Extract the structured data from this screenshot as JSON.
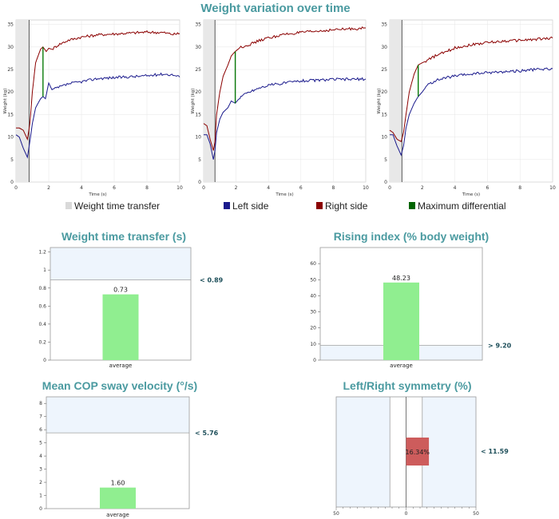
{
  "page": {
    "main_title": "Weight variation over time"
  },
  "legend": [
    {
      "label": "Weight time transfer",
      "color": "#d9d9d9"
    },
    {
      "label": "Left side",
      "color": "#1a1a8c"
    },
    {
      "label": "Right side",
      "color": "#8b0000"
    },
    {
      "label": "Maximum differential",
      "color": "#006400"
    }
  ],
  "chart_data": [
    {
      "type": "line",
      "title": "",
      "xlabel": "Time (s)",
      "ylabel": "Weight (kg)",
      "xlim": [
        0,
        10
      ],
      "ylim": [
        0,
        36
      ],
      "xticks": [
        0,
        2,
        4,
        6,
        8,
        10
      ],
      "yticks": [
        0,
        5,
        10,
        15,
        20,
        25,
        30,
        35
      ],
      "transfer_window": [
        0,
        0.8
      ],
      "max_differential": {
        "x": 1.65,
        "y_low": 19.0,
        "y_high": 30.0
      },
      "series": [
        {
          "name": "Left side",
          "color": "#1a1a8c",
          "x": [
            0,
            0.2,
            0.45,
            0.7,
            0.85,
            1.0,
            1.2,
            1.5,
            1.65,
            1.8,
            2.0,
            2.2,
            2.6,
            3.2,
            4,
            5,
            6,
            7,
            8,
            9,
            9.6,
            10
          ],
          "y": [
            10.5,
            10,
            7.5,
            5.5,
            9,
            13,
            16.5,
            18.5,
            19,
            18.5,
            22,
            20.5,
            21,
            21.8,
            22.3,
            23,
            23.2,
            23.4,
            23.6,
            24,
            23.8,
            23.3
          ]
        },
        {
          "name": "Right side",
          "color": "#8b0000",
          "x": [
            0,
            0.2,
            0.45,
            0.7,
            0.85,
            1.0,
            1.2,
            1.5,
            1.65,
            1.85,
            2.0,
            2.2,
            2.6,
            3.2,
            4,
            5,
            6,
            7,
            8,
            9,
            9.6,
            10
          ],
          "y": [
            12,
            12,
            11.5,
            9.5,
            13,
            20,
            26.5,
            29.5,
            30,
            29,
            29.7,
            29.5,
            30.5,
            31.5,
            32.2,
            32.7,
            32.9,
            33.1,
            33.3,
            33.2,
            32.8,
            33
          ]
        }
      ]
    },
    {
      "type": "line",
      "title": "",
      "xlabel": "Time (s)",
      "ylabel": "Weight (kg)",
      "xlim": [
        0,
        10
      ],
      "ylim": [
        0,
        36
      ],
      "xticks": [
        0,
        2,
        4,
        6,
        8,
        10
      ],
      "yticks": [
        0,
        5,
        10,
        15,
        20,
        25,
        30,
        35
      ],
      "transfer_window": [
        0,
        0.7
      ],
      "max_differential": {
        "x": 1.95,
        "y_low": 17.5,
        "y_high": 29.0
      },
      "series": [
        {
          "name": "Left side",
          "color": "#1a1a8c",
          "x": [
            0,
            0.2,
            0.4,
            0.6,
            0.7,
            0.8,
            1.0,
            1.2,
            1.5,
            1.7,
            1.95,
            2.3,
            2.8,
            3.5,
            4,
            5,
            6,
            7,
            8,
            9,
            10
          ],
          "y": [
            10.5,
            10.5,
            8.5,
            5,
            7,
            11,
            14,
            15.5,
            16.5,
            18,
            17.5,
            19,
            20,
            21,
            21.5,
            22,
            22.5,
            22.6,
            22.8,
            22.8,
            22.9
          ]
        },
        {
          "name": "Right side",
          "color": "#8b0000",
          "x": [
            0,
            0.2,
            0.4,
            0.6,
            0.7,
            0.8,
            1.0,
            1.2,
            1.5,
            1.7,
            1.95,
            2.3,
            2.8,
            3.5,
            4,
            5,
            6,
            7,
            8,
            9,
            10
          ],
          "y": [
            13,
            12.5,
            9.5,
            7,
            9,
            15,
            20,
            23.5,
            26,
            28,
            29,
            30,
            30.5,
            31.5,
            32,
            32.8,
            33.2,
            33.5,
            33.8,
            34,
            34.2
          ]
        }
      ]
    },
    {
      "type": "line",
      "title": "",
      "xlabel": "Time (s)",
      "ylabel": "Weight (kg)",
      "xlim": [
        0,
        10
      ],
      "ylim": [
        0,
        36
      ],
      "xticks": [
        0,
        2,
        4,
        6,
        8,
        10
      ],
      "yticks": [
        0,
        5,
        10,
        15,
        20,
        25,
        30,
        35
      ],
      "transfer_window": [
        0,
        0.75
      ],
      "max_differential": {
        "x": 1.75,
        "y_low": 19.0,
        "y_high": 26.0
      },
      "series": [
        {
          "name": "Left side",
          "color": "#1a1a8c",
          "x": [
            0,
            0.2,
            0.45,
            0.7,
            0.85,
            1.0,
            1.2,
            1.5,
            1.75,
            2.0,
            2.3,
            2.8,
            3.5,
            4,
            5,
            6,
            7,
            8,
            9,
            10
          ],
          "y": [
            10.5,
            10.5,
            8,
            6,
            8,
            12,
            15,
            17.5,
            19,
            20,
            21.5,
            22.5,
            23.2,
            23.5,
            24,
            24.3,
            24.5,
            24.7,
            25,
            25.2
          ]
        },
        {
          "name": "Right side",
          "color": "#8b0000",
          "x": [
            0,
            0.2,
            0.45,
            0.7,
            0.85,
            1.0,
            1.2,
            1.5,
            1.75,
            2.0,
            2.3,
            2.8,
            3.5,
            4,
            5,
            6,
            7,
            8,
            9,
            10
          ],
          "y": [
            11.5,
            11,
            9.5,
            9,
            11,
            15,
            20,
            24,
            26,
            26.5,
            27,
            28,
            29,
            29.8,
            30.5,
            31,
            31.3,
            31.5,
            31.7,
            32
          ]
        }
      ]
    },
    {
      "type": "bar",
      "title": "Weight time transfer (s)",
      "categories": [
        "average"
      ],
      "values": [
        0.73
      ],
      "value_labels": [
        "0.73"
      ],
      "ylim": [
        0,
        1.25
      ],
      "yticks": [
        0,
        0.2,
        0.4,
        0.6,
        0.8,
        1,
        1.2
      ],
      "ytick_labels": [
        "0",
        "0.2",
        "0.4",
        "0.6",
        "0.8",
        "1",
        "1.2"
      ],
      "threshold": {
        "value": 0.89,
        "label": "< 0.89",
        "zone": "above"
      },
      "bar_color": "#90ee90"
    },
    {
      "type": "bar",
      "title": "Rising index (% body weight)",
      "categories": [
        "average"
      ],
      "values": [
        48.23
      ],
      "value_labels": [
        "48.23"
      ],
      "ylim": [
        0,
        70
      ],
      "yticks": [
        0,
        10,
        20,
        30,
        40,
        50,
        60
      ],
      "ytick_labels": [
        "0",
        "10",
        "20",
        "30",
        "40",
        "50",
        "60"
      ],
      "threshold": {
        "value": 9.2,
        "label": "> 9.20",
        "zone": "below"
      },
      "bar_color": "#90ee90"
    },
    {
      "type": "bar",
      "title": "Mean COP sway velocity (°/s)",
      "categories": [
        "average"
      ],
      "values": [
        1.6
      ],
      "value_labels": [
        "1.60"
      ],
      "ylim": [
        0,
        8.5
      ],
      "yticks": [
        0,
        1,
        2,
        3,
        4,
        5,
        6,
        7,
        8
      ],
      "ytick_labels": [
        "0",
        "1",
        "2",
        "3",
        "4",
        "5",
        "6",
        "7",
        "8"
      ],
      "threshold": {
        "value": 5.76,
        "label": "< 5.76",
        "zone": "above"
      },
      "bar_color": "#90ee90"
    },
    {
      "type": "bar",
      "title": "Left/Right symmetry (%)",
      "orientation": "horizontal",
      "value": 16.34,
      "value_label": "16.34%",
      "xlim": [
        -50,
        50
      ],
      "xticks": [
        -50,
        0,
        50
      ],
      "xtick_labels": [
        "50",
        "0",
        "50"
      ],
      "threshold": {
        "value": 11.59,
        "label": "< 11.59"
      },
      "bar_color": "#cd5c5c"
    }
  ]
}
